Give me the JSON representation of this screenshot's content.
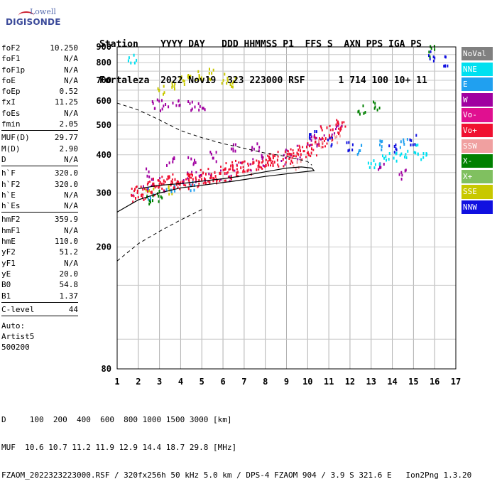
{
  "logo": {
    "line1": "Lowell",
    "line2": "DIGISONDE"
  },
  "header": {
    "line1": "Station    YYYY DAY   DDD HHMMSS P1  FFS S  AXN PPS IGA PS",
    "line2": "Fortaleza  2022 Nov19  323 223000 RSF      1 714 100 10+ 11"
  },
  "params": [
    {
      "name": "foF2",
      "value": "10.250"
    },
    {
      "name": "foF1",
      "value": "N/A"
    },
    {
      "name": "foF1p",
      "value": "N/A"
    },
    {
      "name": "foE",
      "value": "N/A"
    },
    {
      "name": "foEp",
      "value": "0.52"
    },
    {
      "name": "fxI",
      "value": "11.25"
    },
    {
      "name": "foEs",
      "value": "N/A"
    },
    {
      "name": "fmin",
      "value": "2.05"
    },
    {
      "name": "MUF(D)",
      "value": "29.77",
      "sep": true
    },
    {
      "name": "M(D)",
      "value": "2.90"
    },
    {
      "name": "D",
      "value": "N/A"
    },
    {
      "name": "h`F",
      "value": "320.0",
      "sep": true
    },
    {
      "name": "h`F2",
      "value": "320.0"
    },
    {
      "name": "h`E",
      "value": "N/A"
    },
    {
      "name": "h`Es",
      "value": "N/A"
    },
    {
      "name": "hmF2",
      "value": "359.9",
      "sep": true
    },
    {
      "name": "hmF1",
      "value": "N/A"
    },
    {
      "name": "hmE",
      "value": "110.0"
    },
    {
      "name": "yF2",
      "value": "51.2"
    },
    {
      "name": "yF1",
      "value": "N/A"
    },
    {
      "name": "yE",
      "value": "20.0"
    },
    {
      "name": "B0",
      "value": "54.8"
    },
    {
      "name": "B1",
      "value": "1.37"
    },
    {
      "name": "C-level",
      "value": "44",
      "sep": true
    }
  ],
  "auto": {
    "line1": "Auto:",
    "line2": "Artist5",
    "line3": "500200"
  },
  "footer": {
    "line1": "D     100  200  400  600  800 1000 1500 3000 [km]",
    "line2": "MUF  10.6 10.7 11.2 11.9 12.9 14.4 18.7 29.8 [MHz]",
    "line3": "FZAOM_2022323223000.RSF / 320fx256h 50 kHz 5.0 km / DPS-4 FZAOM 904 / 3.9 S 321.6 E   Ion2Png 1.3.20"
  },
  "legend": [
    {
      "label": "NoVal",
      "color": "#808080"
    },
    {
      "label": "NNE",
      "color": "#00e0f0"
    },
    {
      "label": "E",
      "color": "#20a0f0"
    },
    {
      "label": "W",
      "color": "#a000a0"
    },
    {
      "label": "Vo-",
      "color": "#e01090"
    },
    {
      "label": "Vo+",
      "color": "#f01030"
    },
    {
      "label": "SSW",
      "color": "#f0a0a0"
    },
    {
      "label": "X-",
      "color": "#008000"
    },
    {
      "label": "X+",
      "color": "#80c060"
    },
    {
      "label": "SSE",
      "color": "#c8c800"
    },
    {
      "label": "NNW",
      "color": "#1010e0"
    }
  ],
  "chart_data": {
    "type": "scatter",
    "xlim": [
      1,
      17
    ],
    "ylim": [
      80,
      900
    ],
    "x_ticks": [
      "1",
      "2",
      "3",
      "4",
      "5",
      "6",
      "7",
      "8",
      "9",
      "10",
      "11",
      "12",
      "13",
      "14",
      "15",
      "16",
      "17"
    ],
    "y_ticks": [
      "80",
      "200",
      "300",
      "400",
      "500",
      "600",
      "700",
      "800",
      "900"
    ],
    "y_scale": "log",
    "grid": true,
    "series": [
      {
        "name": "Vo+",
        "color": "#f01030",
        "points": [
          [
            2.0,
            300
          ],
          [
            2.5,
            315
          ],
          [
            3.0,
            320
          ],
          [
            3.5,
            330
          ],
          [
            4.0,
            330
          ],
          [
            4.5,
            335
          ],
          [
            5.0,
            340
          ],
          [
            5.5,
            345
          ],
          [
            6.0,
            350
          ],
          [
            6.5,
            360
          ],
          [
            7.0,
            365
          ],
          [
            7.5,
            375
          ],
          [
            8.0,
            380
          ],
          [
            8.5,
            390
          ],
          [
            9.0,
            400
          ],
          [
            9.5,
            410
          ],
          [
            10.0,
            420
          ],
          [
            10.5,
            445
          ],
          [
            11.0,
            475
          ],
          [
            11.5,
            500
          ]
        ]
      },
      {
        "name": "W",
        "color": "#a000a0",
        "points": [
          [
            2.8,
            590
          ],
          [
            3.2,
            585
          ],
          [
            3.8,
            583
          ],
          [
            4.5,
            580
          ],
          [
            5.0,
            578
          ],
          [
            2.5,
            350
          ],
          [
            3.5,
            380
          ],
          [
            4.5,
            390
          ],
          [
            5.5,
            400
          ],
          [
            6.5,
            420
          ],
          [
            7.5,
            430
          ],
          [
            10.3,
            455
          ],
          [
            13.5,
            370
          ],
          [
            14.5,
            350
          ]
        ]
      },
      {
        "name": "SSE",
        "color": "#c8c800",
        "points": [
          [
            3.0,
            650
          ],
          [
            3.5,
            680
          ],
          [
            4.0,
            700
          ],
          [
            4.5,
            720
          ],
          [
            5.0,
            730
          ],
          [
            5.5,
            740
          ],
          [
            6.0,
            720
          ],
          [
            6.5,
            700
          ],
          [
            2.5,
            305
          ],
          [
            3.5,
            310
          ]
        ]
      },
      {
        "name": "NNE",
        "color": "#00e0f0",
        "points": [
          [
            1.7,
            835
          ],
          [
            13.0,
            380
          ],
          [
            13.5,
            390
          ],
          [
            14.0,
            400
          ],
          [
            14.5,
            410
          ],
          [
            15.0,
            420
          ],
          [
            15.5,
            400
          ]
        ]
      },
      {
        "name": "E",
        "color": "#20a0f0",
        "points": [
          [
            2.5,
            300
          ],
          [
            3.5,
            310
          ],
          [
            4.5,
            320
          ],
          [
            12.5,
            420
          ],
          [
            13.5,
            430
          ],
          [
            14.5,
            440
          ]
        ]
      },
      {
        "name": "NNW",
        "color": "#1010e0",
        "points": [
          [
            10.2,
            470
          ],
          [
            11.0,
            440
          ],
          [
            12.0,
            430
          ],
          [
            14.0,
            420
          ],
          [
            15.0,
            450
          ],
          [
            15.8,
            850
          ],
          [
            16.5,
            810
          ]
        ]
      },
      {
        "name": "X-",
        "color": "#008000",
        "points": [
          [
            2.5,
            290
          ],
          [
            3.0,
            295
          ],
          [
            12.5,
            560
          ],
          [
            13.2,
            590
          ],
          [
            15.8,
            880
          ]
        ]
      },
      {
        "name": "SSW",
        "color": "#f0a0a0",
        "points": [
          [
            9.5,
            370
          ],
          [
            10.5,
            440
          ],
          [
            11.3,
            460
          ]
        ]
      }
    ]
  }
}
